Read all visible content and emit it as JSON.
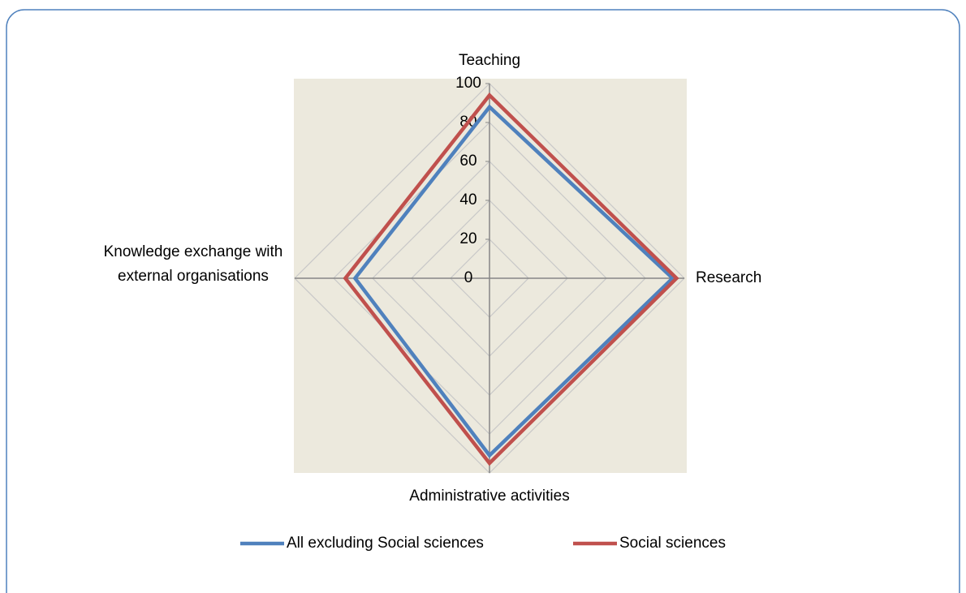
{
  "chart_data": {
    "type": "radar",
    "categories": [
      "Teaching",
      "Research",
      "Administrative activities",
      "Knowledge exchange with external organisations"
    ],
    "series": [
      {
        "name": "All excluding Social sciences",
        "color": "#4f81bd",
        "values": [
          88,
          94,
          91,
          69
        ]
      },
      {
        "name": "Social sciences",
        "color": "#c0504d",
        "values": [
          94,
          96,
          95,
          74
        ]
      }
    ],
    "ylim": [
      0,
      100
    ],
    "yticks": [
      0,
      20,
      40,
      60,
      80,
      100
    ],
    "grid": true,
    "legend": "bottom"
  }
}
